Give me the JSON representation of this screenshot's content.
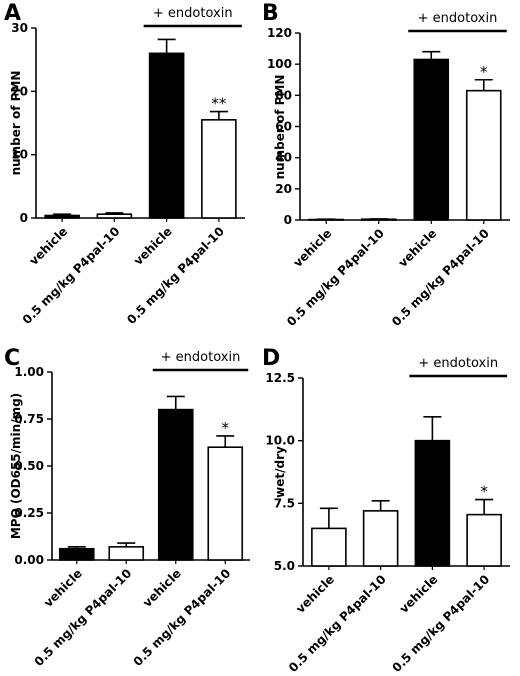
{
  "chart_data": [
    {
      "panel": "A",
      "type": "bar",
      "categories": [
        "vehicle",
        "0.5 mg/kg P4pal-10",
        "vehicle",
        "0.5 mg/kg P4pal-10"
      ],
      "values": [
        0.4,
        0.6,
        26,
        15.5
      ],
      "errors": [
        0.2,
        0.2,
        2.2,
        1.3
      ],
      "fills": [
        "#000000",
        "#ffffff",
        "#000000",
        "#ffffff"
      ],
      "significance": [
        "",
        "",
        "",
        "**"
      ],
      "ylabel": "number of PMN",
      "ylim": [
        0,
        30
      ],
      "yticks": [
        "0",
        "10",
        "20",
        "30"
      ],
      "bracket": {
        "label": "+ endotoxin",
        "from": 2,
        "to": 3
      }
    },
    {
      "panel": "B",
      "type": "bar",
      "categories": [
        "vehicle",
        "0.5 mg/kg P4pal-10",
        "vehicle",
        "0.5 mg/kg P4pal-10"
      ],
      "values": [
        0.3,
        0.5,
        103,
        83
      ],
      "errors": [
        0.2,
        0.2,
        5,
        7
      ],
      "fills": [
        "#000000",
        "#ffffff",
        "#000000",
        "#ffffff"
      ],
      "significance": [
        "",
        "",
        "",
        "*"
      ],
      "ylabel": "number of PMN",
      "ylim": [
        0,
        120
      ],
      "yticks": [
        "0",
        "20",
        "40",
        "60",
        "80",
        "100",
        "120"
      ],
      "bracket": {
        "label": "+ endotoxin",
        "from": 2,
        "to": 3
      }
    },
    {
      "panel": "C",
      "type": "bar",
      "categories": [
        "vehicle",
        "0.5 mg/kg P4pal-10",
        "vehicle",
        "0.5 mg/kg P4pal-10"
      ],
      "values": [
        0.06,
        0.07,
        0.8,
        0.6
      ],
      "errors": [
        0.01,
        0.02,
        0.07,
        0.06
      ],
      "fills": [
        "#000000",
        "#ffffff",
        "#000000",
        "#ffffff"
      ],
      "significance": [
        "",
        "",
        "",
        "*"
      ],
      "ylabel": "MPO (OD655/min/mg)",
      "ylim": [
        0,
        1
      ],
      "yticks": [
        "0.00",
        "0.25",
        "0.50",
        "0.75",
        "1.00"
      ],
      "bracket": {
        "label": "+ endotoxin",
        "from": 2,
        "to": 3
      }
    },
    {
      "panel": "D",
      "type": "bar",
      "categories": [
        "vehicle",
        "0.5 mg/kg P4pal-10",
        "vehicle",
        "0.5 mg/kg P4pal-10"
      ],
      "values": [
        6.5,
        7.2,
        10.0,
        7.05
      ],
      "errors": [
        0.8,
        0.4,
        0.95,
        0.6
      ],
      "fills": [
        "#ffffff",
        "#ffffff",
        "#000000",
        "#ffffff"
      ],
      "significance": [
        "",
        "",
        "",
        "*"
      ],
      "ylabel": "wet/dry",
      "ylim": [
        5,
        12.5
      ],
      "yticks": [
        "5.0",
        "7.5",
        "10.0",
        "12.5"
      ],
      "bracket": {
        "label": "+ endotoxin",
        "from": 2,
        "to": 3
      }
    }
  ]
}
